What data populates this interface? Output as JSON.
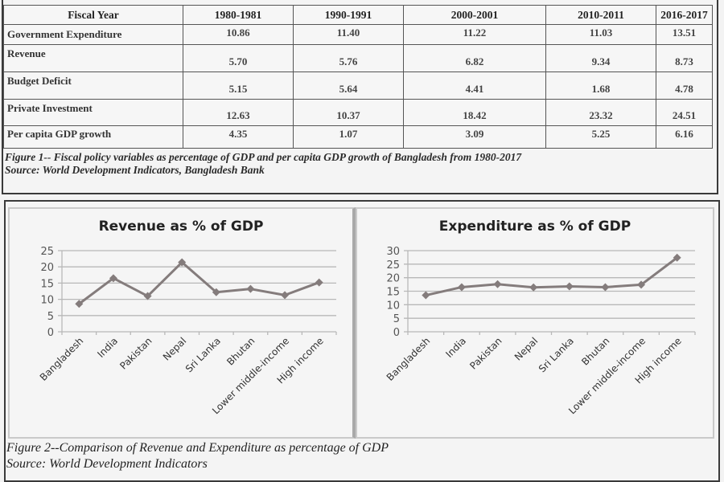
{
  "table": {
    "headers": [
      "Fiscal Year",
      "1980-1981",
      "1990-1991",
      "2000-2001",
      "2010-2011",
      "2016-2017"
    ],
    "rows": [
      {
        "label": "Government Expenditure",
        "values": [
          "10.86",
          "11.40",
          "11.22",
          "11.03",
          "13.51"
        ]
      },
      {
        "label": "Revenue",
        "values": [
          "5.70",
          "5.76",
          "6.82",
          "9.34",
          "8.73"
        ]
      },
      {
        "label": "Budget Deficit",
        "values": [
          "5.15",
          "5.64",
          "4.41",
          "1.68",
          "4.78"
        ]
      },
      {
        "label": "Private Investment",
        "values": [
          "12.63",
          "10.37",
          "18.42",
          "23.32",
          "24.51"
        ]
      },
      {
        "label": "Per capita GDP growth",
        "values": [
          "4.35",
          "1.07",
          "3.09",
          "5.25",
          "6.16"
        ]
      }
    ]
  },
  "figure1": {
    "caption": "Figure 1-- Fiscal policy variables as percentage of GDP and per capita GDP growth of Bangladesh from 1980-2017",
    "source": "Source: World Development Indicators, Bangladesh Bank"
  },
  "figure2": {
    "caption": "Figure 2--Comparison of Revenue and Expenditure as percentage of GDP",
    "source": "Source: World Development Indicators"
  },
  "colors": {
    "line": "#847c7c",
    "grid": "#b8b8b8",
    "axis_text": "#555555"
  },
  "chart_data": [
    {
      "type": "line",
      "title": "Revenue as % of GDP",
      "xlabel": "",
      "ylabel": "",
      "categories": [
        "Bangladesh",
        "India",
        "Pakistan",
        "Nepal",
        "Sri Lanka",
        "Bhutan",
        "Lower middle-income",
        "High income"
      ],
      "values": [
        8.6,
        16.5,
        11.0,
        21.4,
        12.2,
        13.2,
        11.3,
        15.2
      ],
      "ylim": [
        0,
        25
      ],
      "yticks": [
        0,
        5,
        10,
        15,
        20,
        25
      ],
      "grid": true,
      "legend": "none"
    },
    {
      "type": "line",
      "title": "Expenditure as % of GDP",
      "xlabel": "",
      "ylabel": "",
      "categories": [
        "Bangladesh",
        "India",
        "Pakistan",
        "Nepal",
        "Sri Lanka",
        "Bhutan",
        "Lower middle-income",
        "High income"
      ],
      "values": [
        13.5,
        16.5,
        17.6,
        16.4,
        16.8,
        16.5,
        17.4,
        27.4
      ],
      "ylim": [
        0,
        30
      ],
      "yticks": [
        0,
        5,
        10,
        15,
        20,
        25,
        30
      ],
      "grid": true,
      "legend": "none"
    }
  ]
}
